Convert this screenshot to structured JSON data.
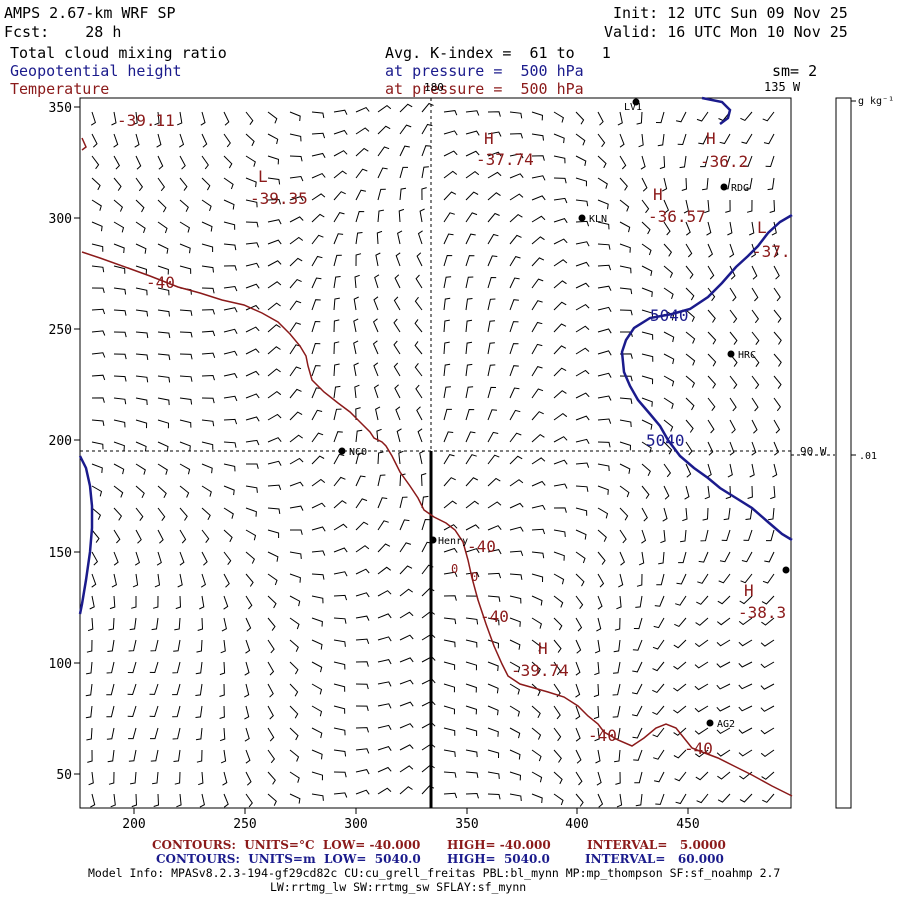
{
  "header": {
    "title": "AMPS 2.67-km WRF SP",
    "fcst": "Fcst:    28 h",
    "init": "Init: 12 UTC Sun 09 Nov 25",
    "valid": "Valid: 16 UTC Mon 10 Nov 25",
    "field1": "Total cloud mixing ratio",
    "field2": "Geopotential height",
    "field3": "Temperature",
    "avg": "Avg. K-index =  61 to   1",
    "pressure1": "at pressure =  500 hPa",
    "pressure2": "at pressure =  500 hPa",
    "sm": "sm= 2",
    "lon135": "135 W",
    "lon180": "180"
  },
  "colorbar": {
    "unit": "g kg⁻¹",
    "tick": ".01",
    "lon90": "90 W"
  },
  "axes": {
    "x_ticks": [
      "200",
      "250",
      "300",
      "350",
      "400",
      "450"
    ],
    "y_ticks": [
      "350",
      "300",
      "250",
      "200",
      "150",
      "100",
      "50"
    ]
  },
  "stations": [
    {
      "name": "LV1",
      "label": "LV1"
    },
    {
      "name": "RDG",
      "label": "RDG"
    },
    {
      "name": "KLN",
      "label": "KLN"
    },
    {
      "name": "HRC",
      "label": "HRC"
    },
    {
      "name": "NCO",
      "label": "NCO"
    },
    {
      "name": "Henry",
      "label": "Henry"
    },
    {
      "name": "AG2",
      "label": "AG2"
    },
    {
      "name": "east-edge",
      "label": ""
    }
  ],
  "labels": {
    "H": "H",
    "L": "L",
    "t1": "-39.11",
    "t2": "-37.74",
    "t3": "-36.2",
    "t4": "-39.35",
    "t5": "-36.57",
    "t6": "-37.",
    "t7": "-38.3",
    "t8": "-39.74",
    "c40": "-40",
    "c40b": "-40",
    "c40c": "-40",
    "c40d": "-40",
    "c40e": "-40",
    "g5040a": "5040",
    "g5040b": "5040",
    "zero": "0",
    "zero2": "0"
  },
  "footer": {
    "c_red_contours": "CONTOURS:  UNITS=°C  LOW= -40.000",
    "c_red_high": "HIGH= -40.000",
    "c_red_int": "INTERVAL=   5.0000",
    "c_blue_contours": "CONTOURS:  UNITS=m  LOW=  5040.0",
    "c_blue_high": "HIGH=  5040.0",
    "c_blue_int": "INTERVAL=   60.000",
    "model": "Model Info: MPASv8.2.3-194-gf29cd82c CU:cu_grell_freitas PBL:bl_mynn MP:mp_thompson SF:sf_noahmp 2.7",
    "model2": "LW:rrtmg_lw SW:rrtmg_sw SFLAY:sf_mynn"
  },
  "colors": {
    "blue": "#1b1b8c",
    "red": "#8b1a1a",
    "axis": "#000000"
  }
}
